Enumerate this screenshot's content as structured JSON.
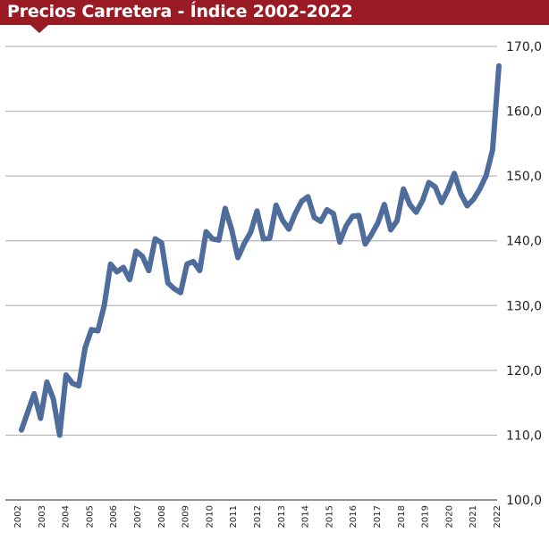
{
  "colors": {
    "banner": "#9b1b24",
    "line": "#4f6d9c",
    "grid": "#b8b8b8",
    "axis": "#555555"
  },
  "chart_data": {
    "type": "line",
    "title": "Precios Carretera - Índice 2002-2022",
    "xlabel": "",
    "ylabel": "",
    "ylim": [
      100,
      170
    ],
    "yticks": [
      "100,0",
      "110,0",
      "120,0",
      "130,0",
      "140,0",
      "150,0",
      "160,0",
      "170,0"
    ],
    "ytick_values": [
      100,
      110,
      120,
      130,
      140,
      150,
      160,
      170
    ],
    "xticks": [
      "2002",
      "2003",
      "2004",
      "2005",
      "2006",
      "2007",
      "2008",
      "2009",
      "2010",
      "2011",
      "2012",
      "2013",
      "2014",
      "2015",
      "2016",
      "2017",
      "2018",
      "2019",
      "2020",
      "2021",
      "2022"
    ],
    "grid": true,
    "legend": "none",
    "series": [
      {
        "values": [
          110.8,
          113.6,
          116.4,
          112.6,
          118.2,
          115.6,
          110.0,
          119.3,
          118.0,
          117.6,
          123.5,
          126.3,
          126.1,
          130.0,
          136.4,
          135.2,
          135.9,
          134.0,
          138.4,
          137.6,
          135.4,
          140.3,
          139.7,
          133.5,
          132.6,
          132.0,
          136.4,
          136.8,
          135.4,
          141.4,
          140.3,
          140.1,
          145.0,
          141.8,
          137.4,
          139.6,
          141.3,
          144.6,
          140.3,
          140.4,
          145.5,
          143.2,
          141.8,
          144.2,
          146.1,
          146.8,
          143.6,
          143.0,
          144.8,
          144.2,
          139.8,
          142.3,
          143.8,
          143.9,
          139.5,
          141.0,
          142.8,
          145.6,
          141.7,
          143.1,
          148.0,
          145.6,
          144.4,
          146.2,
          149.0,
          148.3,
          145.9,
          147.9,
          150.4,
          147.3,
          145.4,
          146.4,
          148.0,
          150.1,
          154.0,
          167.0
        ]
      }
    ]
  }
}
